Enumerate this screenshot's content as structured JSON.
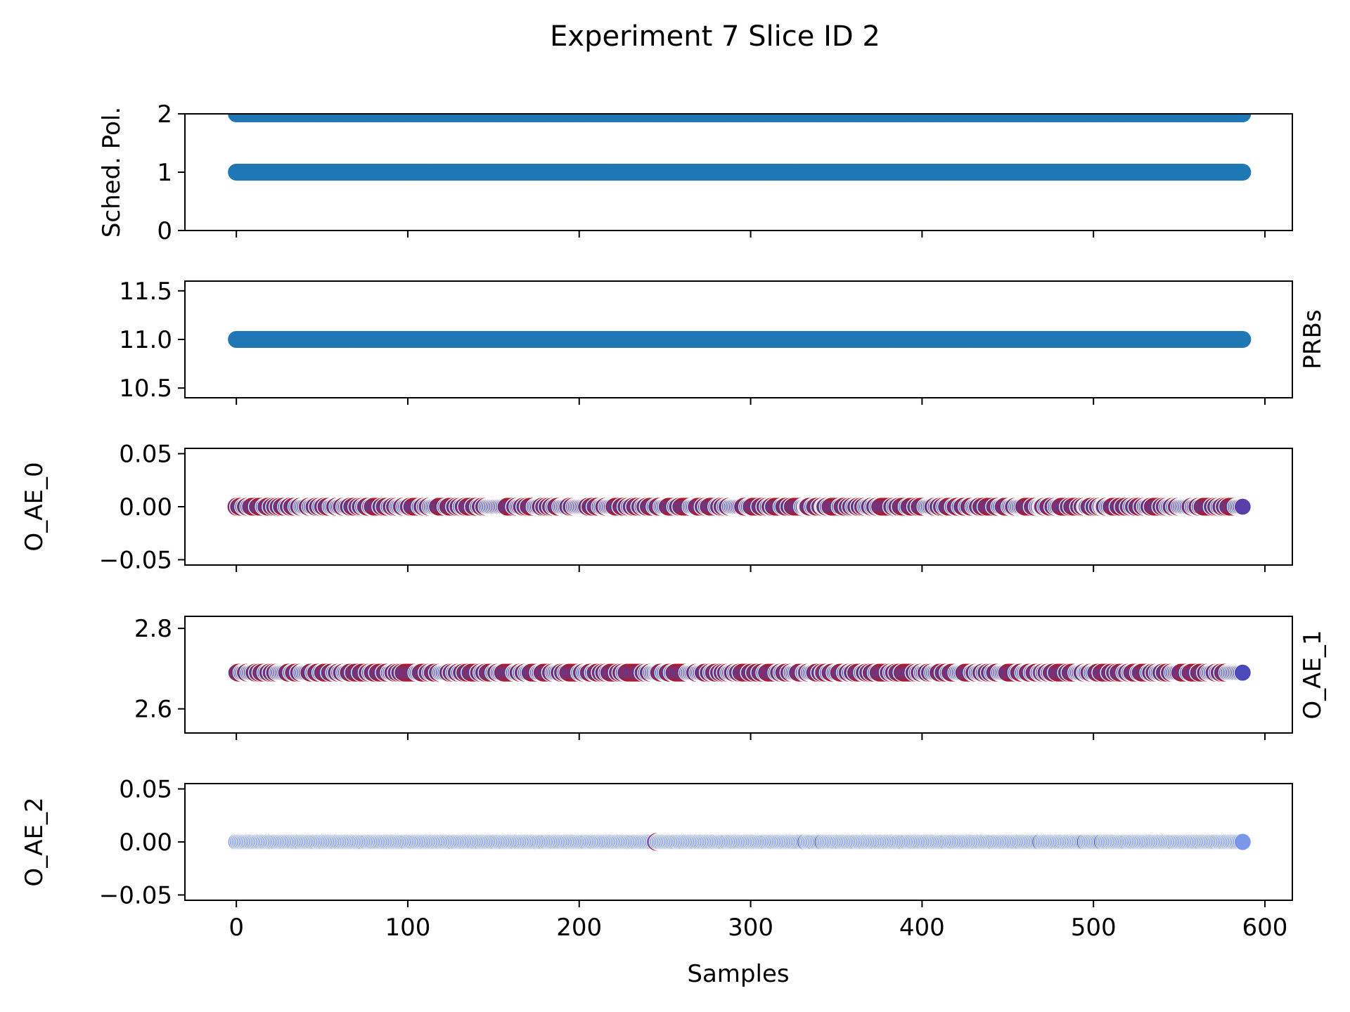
{
  "chart_data": {
    "title": "Experiment 7 Slice ID 2",
    "type": "scatter",
    "shared_x": {
      "label": "Samples",
      "range": [
        -30,
        616
      ],
      "ticks": [
        0,
        100,
        200,
        300,
        400,
        500,
        600
      ],
      "tick_labels": [
        "0",
        "100",
        "200",
        "300",
        "400",
        "500",
        "600"
      ],
      "sample_count": 588
    },
    "subplots": [
      {
        "ylabel": "Sched. Pol.",
        "ylabel_side": "left",
        "ylim": [
          0,
          2
        ],
        "yticks": [
          0,
          1,
          2
        ],
        "ytick_labels": [
          "0",
          "1",
          "2"
        ],
        "series": [
          {
            "name": "sched_pol_level_1",
            "x_range": [
              0,
              587
            ],
            "y": 1,
            "color": "#1f77b4"
          },
          {
            "name": "sched_pol_level_2",
            "x_range": [
              0,
              587
            ],
            "y": 2,
            "color": "#1f77b4"
          }
        ]
      },
      {
        "ylabel": "PRBs",
        "ylabel_side": "right",
        "ylim": [
          10.4,
          11.6
        ],
        "yticks": [
          10.5,
          11.0,
          11.5
        ],
        "ytick_labels": [
          "10.5",
          "11.0",
          "11.5"
        ],
        "series": [
          {
            "name": "prbs",
            "x_range": [
              0,
              587
            ],
            "y": 11.0,
            "color": "#1f77b4"
          }
        ]
      },
      {
        "ylabel": "O_AE_0",
        "ylabel_side": "left",
        "ylim": [
          -0.055,
          0.055
        ],
        "yticks": [
          -0.05,
          0.0,
          0.05
        ],
        "ytick_labels": [
          "−0.05",
          "0.00",
          "0.05"
        ],
        "series": [
          {
            "name": "o_ae_0",
            "x_range": [
              0,
              587
            ],
            "y": 0.0,
            "colormap": "coolwarm",
            "edge_color": "#b2182b",
            "highlight_x": [
              332,
              342,
              469,
              495,
              505
            ],
            "highlight_color": "#f3c9b8"
          }
        ]
      },
      {
        "ylabel": "O_AE_1",
        "ylabel_side": "right",
        "ylim": [
          2.54,
          2.83
        ],
        "yticks": [
          2.6,
          2.8
        ],
        "ytick_labels": [
          "2.6",
          "2.8"
        ],
        "series": [
          {
            "name": "o_ae_1",
            "x_range": [
              0,
              587
            ],
            "y": 2.69,
            "colormap": "coolwarm",
            "edge_color": "#b2182b",
            "highlight_x": [
              245,
              332,
              342,
              469,
              495
            ],
            "highlight_color": "#7b8fe0"
          }
        ]
      },
      {
        "ylabel": "O_AE_2",
        "ylabel_side": "left",
        "ylim": [
          -0.055,
          0.055
        ],
        "yticks": [
          -0.05,
          0.0,
          0.05
        ],
        "ytick_labels": [
          "−0.05",
          "0.00",
          "0.05"
        ],
        "series": [
          {
            "name": "o_ae_2",
            "x_range": [
              0,
              587
            ],
            "y": 0.0,
            "color": "#7b96ea",
            "dark_x": [
              332,
              342,
              469,
              495,
              505
            ],
            "dark_color": "#3b4cc0",
            "red_x": [
              245
            ],
            "red_color": "#b2182b"
          }
        ]
      }
    ]
  }
}
